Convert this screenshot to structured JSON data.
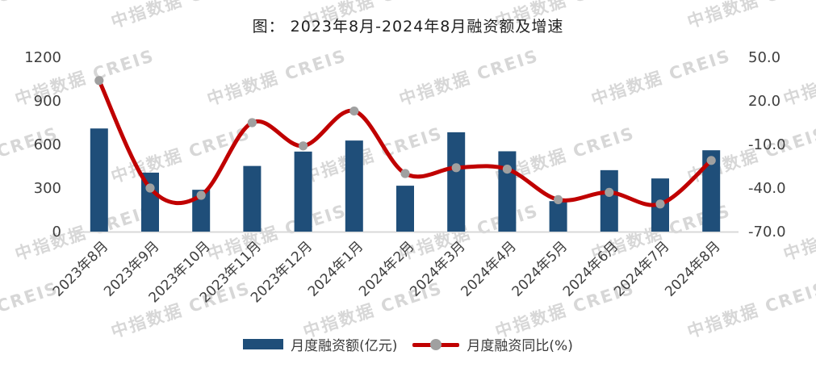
{
  "title": "图： 2023年8月-2024年8月融资额及增速",
  "watermark": {
    "text": "中指数据 CREIS"
  },
  "colors": {
    "bar": "#1F4E79",
    "line": "#C00000",
    "marker": "#A0A0A0",
    "axis_line": "#D9D9D9",
    "tick_text": "#3F3F3F"
  },
  "chart_data": {
    "type": "bar+line combo",
    "title": "图： 2023年8月-2024年8月融资额及增速",
    "categories": [
      "2023年8月",
      "2023年9月",
      "2023年10月",
      "2023年11月",
      "2023年12月",
      "2024年1月",
      "2024年2月",
      "2024年3月",
      "2024年4月",
      "2024年5月",
      "2024年6月",
      "2024年7月",
      "2024年8月"
    ],
    "series": [
      {
        "name": "月度融资额(亿元)",
        "type": "bar",
        "axis": "left",
        "color": "#1F4E79",
        "values": [
          710,
          406,
          288,
          452,
          551,
          627,
          316,
          684,
          553,
          210,
          423,
          366,
          560
        ]
      },
      {
        "name": "月度融资同比(%)",
        "type": "line",
        "axis": "right",
        "color": "#C00000",
        "marker_color": "#A0A0A0",
        "values": [
          34,
          -40,
          -45,
          5,
          -11,
          13,
          -30,
          -26,
          -27,
          -48,
          -43,
          -51,
          -21
        ]
      }
    ],
    "left_axis": {
      "min": 0,
      "max": 1200,
      "tick_step": 300,
      "tick_labels": [
        "0",
        "300",
        "600",
        "900",
        "1200"
      ]
    },
    "right_axis": {
      "min": -70,
      "max": 50,
      "tick_step": 30,
      "tick_labels": [
        "-70.0",
        "-40.0",
        "-10.0",
        "20.0",
        "50.0"
      ]
    },
    "grid": false,
    "legend_position": "bottom"
  },
  "legend": {
    "bar_label": "月度融资额(亿元)",
    "line_label": "月度融资同比(%)"
  }
}
